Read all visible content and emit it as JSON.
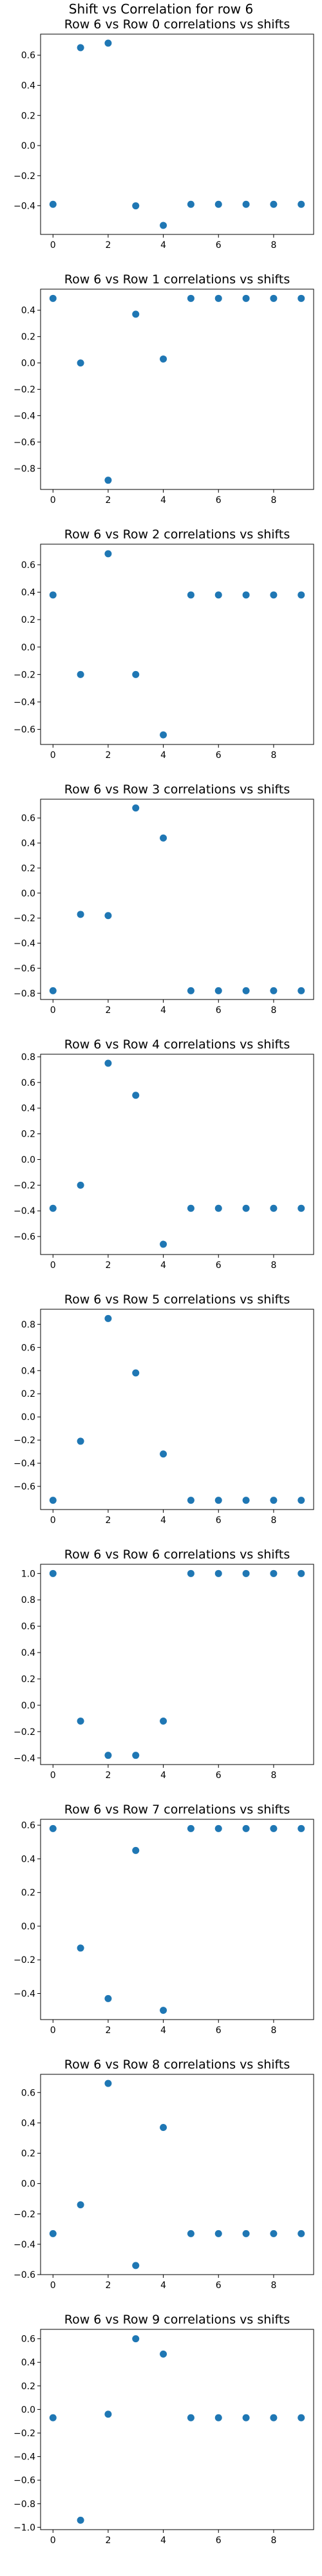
{
  "figure_title": "Shift vs Correlation for row 6",
  "chart_data": [
    {
      "type": "scatter",
      "title": "Row 6 vs Row 0 correlations vs shifts",
      "xlabel": "",
      "ylabel": "",
      "x": [
        0,
        1,
        2,
        3,
        4,
        5,
        6,
        7,
        8,
        9
      ],
      "y": [
        -0.39,
        0.65,
        0.68,
        -0.4,
        -0.53,
        -0.39,
        -0.39,
        -0.39,
        -0.39,
        -0.39
      ],
      "xlim": [
        -0.45,
        9.45
      ],
      "ylim": [
        -0.59,
        0.74
      ],
      "xticks": [
        0,
        2,
        4,
        6,
        8
      ],
      "yticks": [
        -0.4,
        -0.2,
        0.0,
        0.2,
        0.4,
        0.6
      ],
      "color": "#1f77b4"
    },
    {
      "type": "scatter",
      "title": "Row 6 vs Row 1 correlations vs shifts",
      "xlabel": "",
      "ylabel": "",
      "x": [
        0,
        1,
        2,
        3,
        4,
        5,
        6,
        7,
        8,
        9
      ],
      "y": [
        0.49,
        0.0,
        -0.89,
        0.37,
        0.03,
        0.49,
        0.49,
        0.49,
        0.49,
        0.49
      ],
      "xlim": [
        -0.45,
        9.45
      ],
      "ylim": [
        -0.96,
        0.56
      ],
      "xticks": [
        0,
        2,
        4,
        6,
        8
      ],
      "yticks": [
        -0.8,
        -0.6,
        -0.4,
        -0.2,
        0.0,
        0.2,
        0.4
      ],
      "color": "#1f77b4"
    },
    {
      "type": "scatter",
      "title": "Row 6 vs Row 2 correlations vs shifts",
      "xlabel": "",
      "ylabel": "",
      "x": [
        0,
        1,
        2,
        3,
        4,
        5,
        6,
        7,
        8,
        9
      ],
      "y": [
        0.38,
        -0.2,
        0.68,
        -0.2,
        -0.64,
        0.38,
        0.38,
        0.38,
        0.38,
        0.38
      ],
      "xlim": [
        -0.45,
        9.45
      ],
      "ylim": [
        -0.71,
        0.75
      ],
      "xticks": [
        0,
        2,
        4,
        6,
        8
      ],
      "yticks": [
        -0.6,
        -0.4,
        -0.2,
        0.0,
        0.2,
        0.4,
        0.6
      ],
      "color": "#1f77b4"
    },
    {
      "type": "scatter",
      "title": "Row 6 vs Row 3 correlations vs shifts",
      "xlabel": "",
      "ylabel": "",
      "x": [
        0,
        1,
        2,
        3,
        4,
        5,
        6,
        7,
        8,
        9
      ],
      "y": [
        -0.78,
        -0.17,
        -0.18,
        0.68,
        0.44,
        -0.78,
        -0.78,
        -0.78,
        -0.78,
        -0.78
      ],
      "xlim": [
        -0.45,
        9.45
      ],
      "ylim": [
        -0.85,
        0.75
      ],
      "xticks": [
        0,
        2,
        4,
        6,
        8
      ],
      "yticks": [
        -0.8,
        -0.6,
        -0.4,
        -0.2,
        0.0,
        0.2,
        0.4,
        0.6
      ],
      "color": "#1f77b4"
    },
    {
      "type": "scatter",
      "title": "Row 6 vs Row 4 correlations vs shifts",
      "xlabel": "",
      "ylabel": "",
      "x": [
        0,
        1,
        2,
        3,
        4,
        5,
        6,
        7,
        8,
        9
      ],
      "y": [
        -0.38,
        -0.2,
        0.75,
        0.5,
        -0.66,
        -0.38,
        -0.38,
        -0.38,
        -0.38,
        -0.38
      ],
      "xlim": [
        -0.45,
        9.45
      ],
      "ylim": [
        -0.74,
        0.82
      ],
      "xticks": [
        0,
        2,
        4,
        6,
        8
      ],
      "yticks": [
        -0.6,
        -0.4,
        -0.2,
        0.0,
        0.2,
        0.4,
        0.6,
        0.8
      ],
      "color": "#1f77b4"
    },
    {
      "type": "scatter",
      "title": "Row 6 vs Row 5 correlations vs shifts",
      "xlabel": "",
      "ylabel": "",
      "x": [
        0,
        1,
        2,
        3,
        4,
        5,
        6,
        7,
        8,
        9
      ],
      "y": [
        -0.72,
        -0.21,
        0.85,
        0.38,
        -0.32,
        -0.72,
        -0.72,
        -0.72,
        -0.72,
        -0.72
      ],
      "xlim": [
        -0.45,
        9.45
      ],
      "ylim": [
        -0.8,
        0.93
      ],
      "xticks": [
        0,
        2,
        4,
        6,
        8
      ],
      "yticks": [
        -0.6,
        -0.4,
        -0.2,
        0.0,
        0.2,
        0.4,
        0.6,
        0.8
      ],
      "color": "#1f77b4"
    },
    {
      "type": "scatter",
      "title": "Row 6 vs Row 6 correlations vs shifts",
      "xlabel": "",
      "ylabel": "",
      "x": [
        0,
        1,
        2,
        3,
        4,
        5,
        6,
        7,
        8,
        9
      ],
      "y": [
        1.0,
        -0.12,
        -0.38,
        -0.38,
        -0.12,
        1.0,
        1.0,
        1.0,
        1.0,
        1.0
      ],
      "xlim": [
        -0.45,
        9.45
      ],
      "ylim": [
        -0.45,
        1.07
      ],
      "xticks": [
        0,
        2,
        4,
        6,
        8
      ],
      "yticks": [
        -0.4,
        -0.2,
        0.0,
        0.2,
        0.4,
        0.6,
        0.8,
        1.0
      ],
      "color": "#1f77b4"
    },
    {
      "type": "scatter",
      "title": "Row 6 vs Row 7 correlations vs shifts",
      "xlabel": "",
      "ylabel": "",
      "x": [
        0,
        1,
        2,
        3,
        4,
        5,
        6,
        7,
        8,
        9
      ],
      "y": [
        0.58,
        -0.13,
        -0.43,
        0.45,
        -0.5,
        0.58,
        0.58,
        0.58,
        0.58,
        0.58
      ],
      "xlim": [
        -0.45,
        9.45
      ],
      "ylim": [
        -0.555,
        0.635
      ],
      "xticks": [
        0,
        2,
        4,
        6,
        8
      ],
      "yticks": [
        -0.4,
        -0.2,
        0.0,
        0.2,
        0.4,
        0.6
      ],
      "color": "#1f77b4"
    },
    {
      "type": "scatter",
      "title": "Row 6 vs Row 8 correlations vs shifts",
      "xlabel": "",
      "ylabel": "",
      "x": [
        0,
        1,
        2,
        3,
        4,
        5,
        6,
        7,
        8,
        9
      ],
      "y": [
        -0.33,
        -0.14,
        0.66,
        -0.54,
        0.37,
        -0.33,
        -0.33,
        -0.33,
        -0.33,
        -0.33
      ],
      "xlim": [
        -0.45,
        9.45
      ],
      "ylim": [
        -0.6,
        0.72
      ],
      "xticks": [
        0,
        2,
        4,
        6,
        8
      ],
      "yticks": [
        -0.6,
        -0.4,
        -0.2,
        0.0,
        0.2,
        0.4,
        0.6
      ],
      "color": "#1f77b4"
    },
    {
      "type": "scatter",
      "title": "Row 6 vs Row 9 correlations vs shifts",
      "xlabel": "",
      "ylabel": "",
      "x": [
        0,
        1,
        2,
        3,
        4,
        5,
        6,
        7,
        8,
        9
      ],
      "y": [
        -0.07,
        -0.94,
        -0.04,
        0.6,
        0.47,
        -0.07,
        -0.07,
        -0.07,
        -0.07,
        -0.07
      ],
      "xlim": [
        -0.45,
        9.45
      ],
      "ylim": [
        -1.02,
        0.68
      ],
      "xticks": [
        0,
        2,
        4,
        6,
        8
      ],
      "yticks": [
        -1.0,
        -0.8,
        -0.6,
        -0.4,
        -0.2,
        0.0,
        0.2,
        0.4,
        0.6
      ],
      "color": "#1f77b4"
    }
  ]
}
